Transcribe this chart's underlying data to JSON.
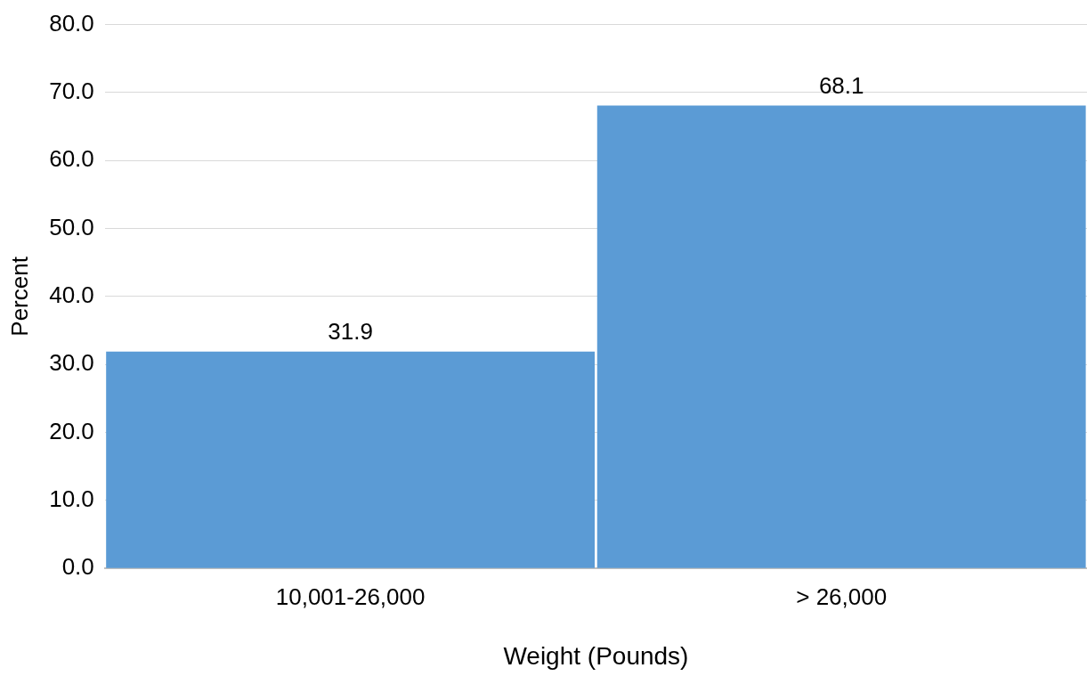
{
  "chart_data": {
    "type": "bar",
    "xlabel": "Weight (Pounds)",
    "ylabel": "Percent",
    "categories": [
      "10,001-26,000",
      "> 26,000"
    ],
    "values": [
      31.9,
      68.1
    ],
    "color": "#5b9bd5",
    "ylim": [
      0,
      80
    ],
    "yticks": [
      {
        "value": 0,
        "label": "0.0"
      },
      {
        "value": 10,
        "label": "10.0"
      },
      {
        "value": 20,
        "label": "20.0"
      },
      {
        "value": 30,
        "label": "30.0"
      },
      {
        "value": 40,
        "label": "40.0"
      },
      {
        "value": 50,
        "label": "50.0"
      },
      {
        "value": 60,
        "label": "60.0"
      },
      {
        "value": 70,
        "label": "70.0"
      },
      {
        "value": 80,
        "label": "80.0"
      }
    ],
    "grid": "y",
    "data_labels": true
  }
}
